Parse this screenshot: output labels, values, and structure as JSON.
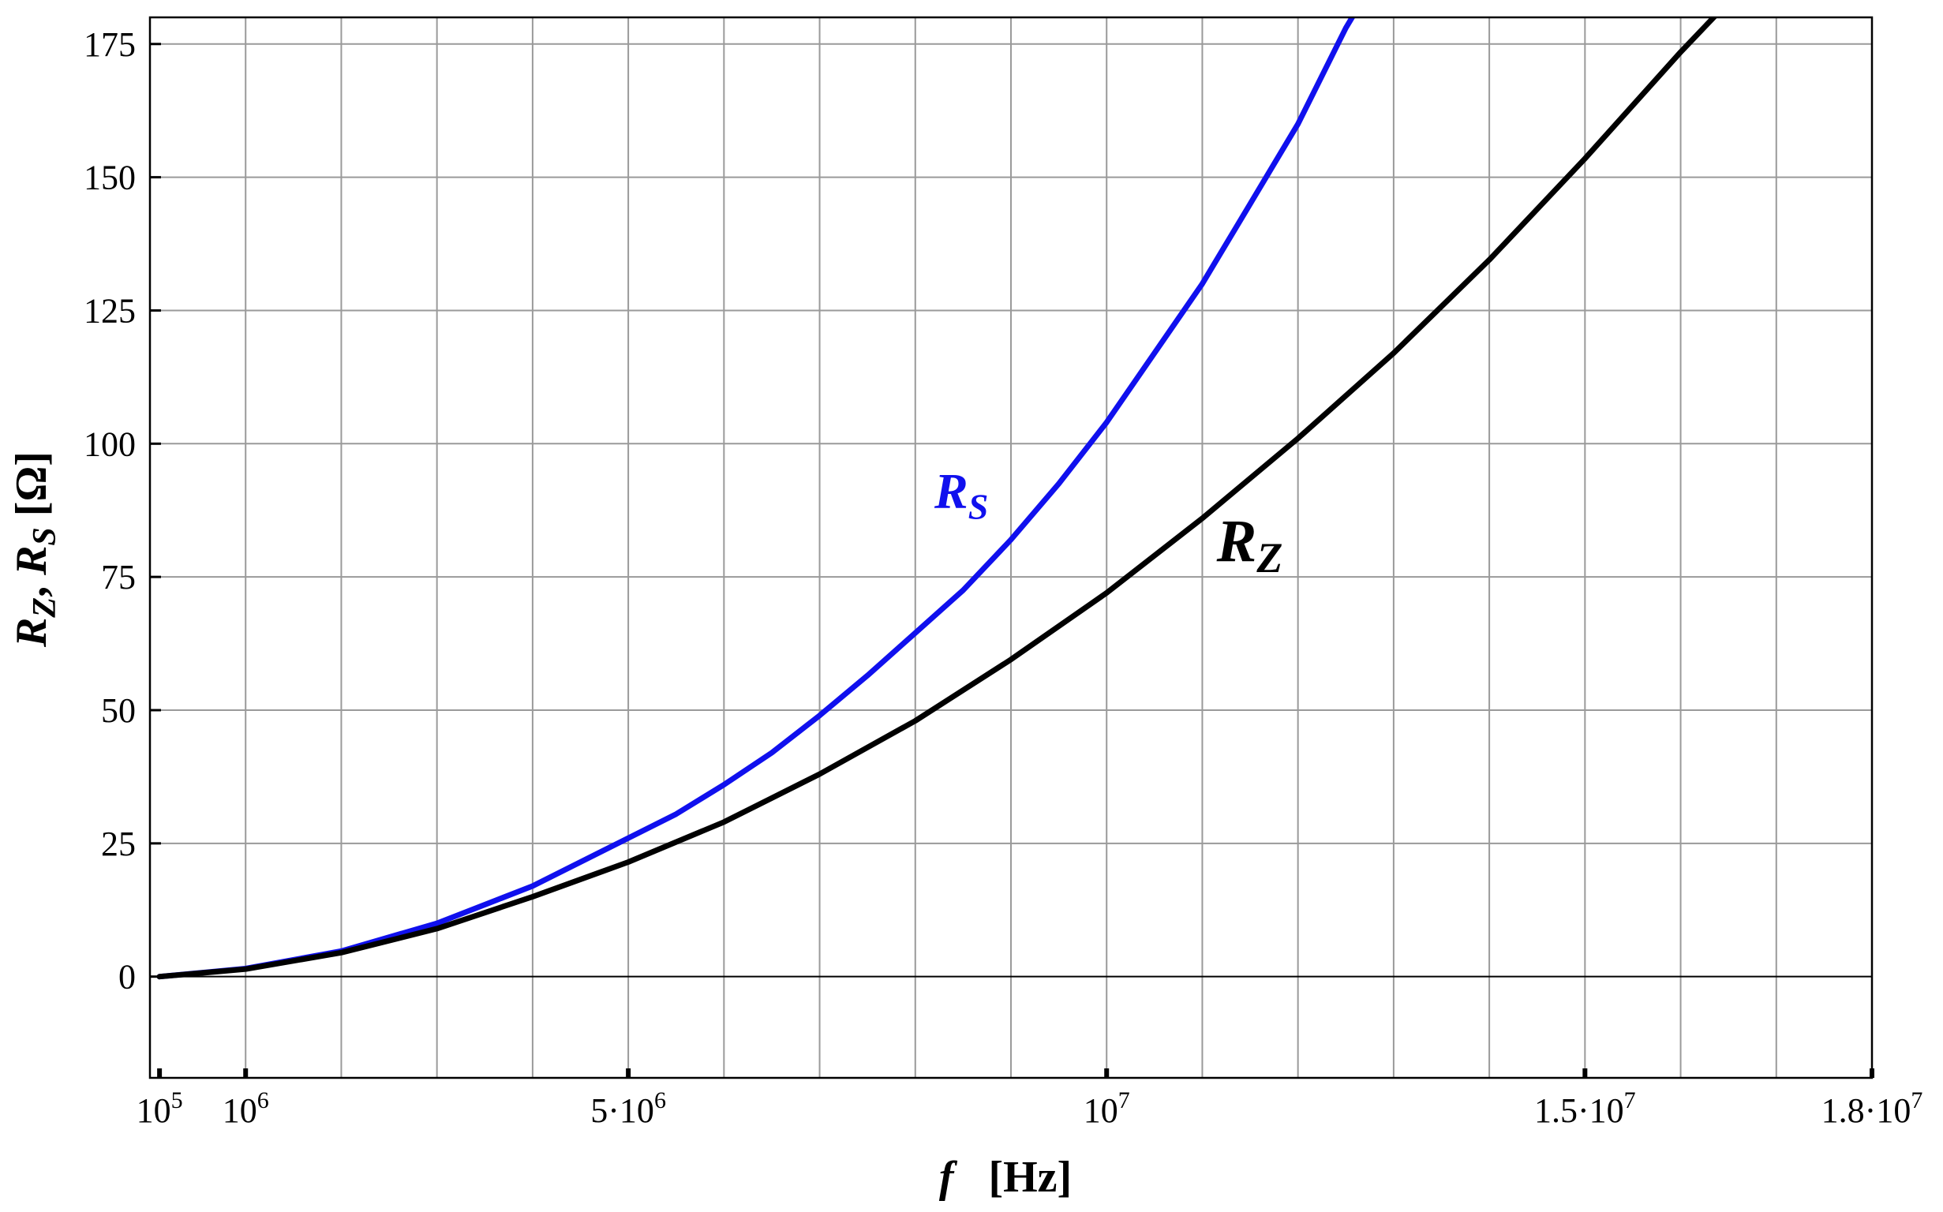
{
  "chart_data": {
    "type": "line",
    "xlabel": {
      "var": "f",
      "unit": "[Hz]"
    },
    "ylabel": {
      "r1": "R",
      "s1": "Z",
      "sep": ", ",
      "r2": "R",
      "s2": "S",
      "unit": " [Ω]"
    },
    "xlim": [
      0,
      18000000
    ],
    "ylim": [
      -19,
      180
    ],
    "grid": true,
    "x_grid_step": 1000000,
    "y_ticks": [
      0,
      25,
      50,
      75,
      100,
      125,
      150,
      175
    ],
    "x_ticks": [
      {
        "value": 100000,
        "base": "10",
        "exp": "5"
      },
      {
        "value": 1000000,
        "base": "10",
        "exp": "6"
      },
      {
        "value": 5000000,
        "base": "5·10",
        "exp": "6"
      },
      {
        "value": 10000000,
        "base": "10",
        "exp": "7"
      },
      {
        "value": 15000000,
        "base": "1.5·10",
        "exp": "7"
      },
      {
        "value": 18000000,
        "base": "1.8·10",
        "exp": "7"
      }
    ],
    "series": [
      {
        "name": "RS",
        "label_main": "R",
        "label_sub": "S",
        "color": "#1010ee",
        "x": [
          100000,
          1000000,
          2000000,
          3000000,
          4000000,
          5000000,
          5500000,
          6000000,
          6500000,
          7000000,
          7500000,
          8000000,
          8500000,
          9000000,
          9500000,
          10000000,
          10500000,
          11000000,
          11500000,
          12000000,
          12500000,
          12600000
        ],
        "y": [
          0,
          1.5,
          4.8,
          10,
          17,
          26,
          30.5,
          36,
          42,
          49,
          56.5,
          64.5,
          72.5,
          82,
          92.5,
          104,
          117,
          130,
          145,
          160,
          178,
          181
        ]
      },
      {
        "name": "RZ",
        "label_main": "R",
        "label_sub": "Z",
        "color": "#000000",
        "x": [
          100000,
          1000000,
          2000000,
          3000000,
          4000000,
          5000000,
          6000000,
          7000000,
          8000000,
          9000000,
          10000000,
          11000000,
          12000000,
          13000000,
          14000000,
          15000000,
          16000000,
          16400000
        ],
        "y": [
          0,
          1.4,
          4.5,
          9,
          15,
          21.5,
          29,
          38,
          48,
          59.5,
          72,
          86,
          101,
          117,
          134.5,
          153.5,
          173.5,
          181
        ]
      }
    ]
  }
}
